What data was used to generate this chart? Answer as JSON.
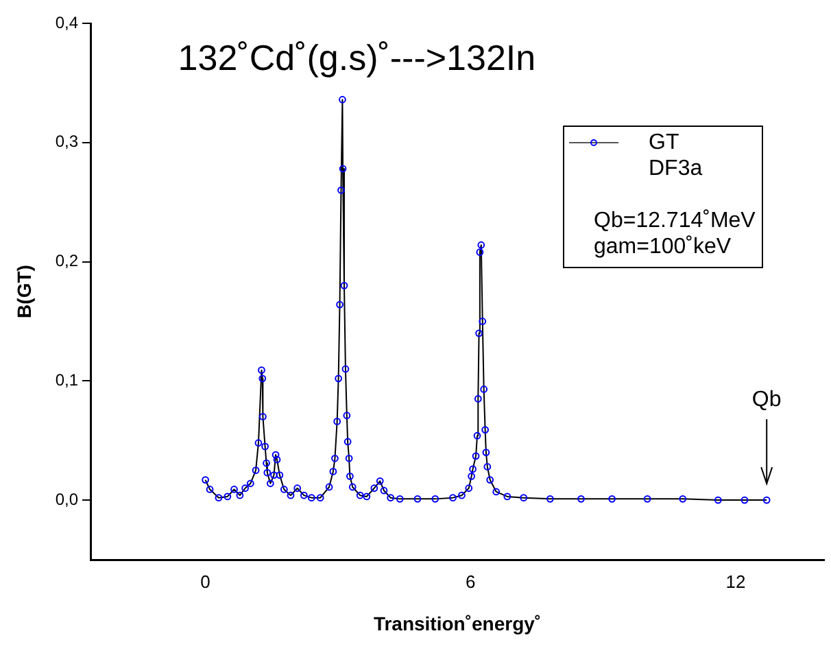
{
  "chart_data": {
    "type": "line",
    "title": "132˚Cd˚(g.s)˚--->132In",
    "xlabel": "Transition˚energy˚",
    "ylabel": "B(GT)",
    "xlim": [
      -2.6,
      14
    ],
    "xticks": [
      0,
      6,
      12
    ],
    "ylim": [
      -0.05,
      0.4
    ],
    "yticks": [
      {
        "value": 0,
        "label": "0,0"
      },
      {
        "value": 0.1,
        "label": "0,1"
      },
      {
        "value": 0.2,
        "label": "0,2"
      },
      {
        "value": 0.3,
        "label": "0,3"
      },
      {
        "value": 0.4,
        "label": "0,4"
      }
    ],
    "grid": false,
    "legend": "top right",
    "marker": "circle",
    "line_style": "solid",
    "annotations": [
      "DF3a",
      "Qb=12.714˚MeV",
      "gam=100˚keV",
      "Qb"
    ],
    "series": [
      {
        "name": "GT",
        "color": "#0000ff",
        "x": [
          0,
          0.1,
          0.3,
          0.5,
          0.65,
          0.78,
          0.9,
          1.02,
          1.14,
          1.2,
          1.27,
          1.29,
          1.3,
          1.35,
          1.38,
          1.4,
          1.47,
          1.55,
          1.59,
          1.62,
          1.68,
          1.78,
          1.93,
          2.08,
          2.23,
          2.4,
          2.6,
          2.8,
          2.89,
          2.93,
          2.98,
          3.01,
          3.04,
          3.07,
          3.1,
          3.11,
          3.14,
          3.17,
          3.2,
          3.22,
          3.25,
          3.27,
          3.33,
          3.5,
          3.65,
          3.82,
          3.95,
          4.04,
          4.19,
          4.4,
          4.8,
          5.2,
          5.6,
          5.8,
          5.96,
          6.02,
          6.05,
          6.12,
          6.15,
          6.17,
          6.19,
          6.21,
          6.24,
          6.27,
          6.3,
          6.33,
          6.35,
          6.38,
          6.44,
          6.58,
          6.83,
          7.2,
          7.8,
          8.5,
          9.2,
          10,
          10.8,
          11.6,
          12.2,
          12.7
        ],
        "values": [
          0.017,
          0.009,
          0.002,
          0.003,
          0.009,
          0.004,
          0.01,
          0.014,
          0.025,
          0.048,
          0.109,
          0.102,
          0.07,
          0.045,
          0.031,
          0.023,
          0.014,
          0.021,
          0.038,
          0.034,
          0.021,
          0.009,
          0.004,
          0.01,
          0.004,
          0.002,
          0.002,
          0.011,
          0.024,
          0.035,
          0.066,
          0.102,
          0.164,
          0.26,
          0.336,
          0.278,
          0.18,
          0.11,
          0.071,
          0.049,
          0.035,
          0.02,
          0.011,
          0.004,
          0.003,
          0.01,
          0.016,
          0.008,
          0.002,
          0.001,
          0.001,
          0.001,
          0.002,
          0.004,
          0.01,
          0.02,
          0.026,
          0.037,
          0.054,
          0.085,
          0.14,
          0.208,
          0.214,
          0.15,
          0.093,
          0.059,
          0.04,
          0.028,
          0.017,
          0.007,
          0.003,
          0.002,
          0.001,
          0.001,
          0.001,
          0.001,
          0.001,
          0.0,
          0.0,
          0.0
        ]
      }
    ]
  }
}
